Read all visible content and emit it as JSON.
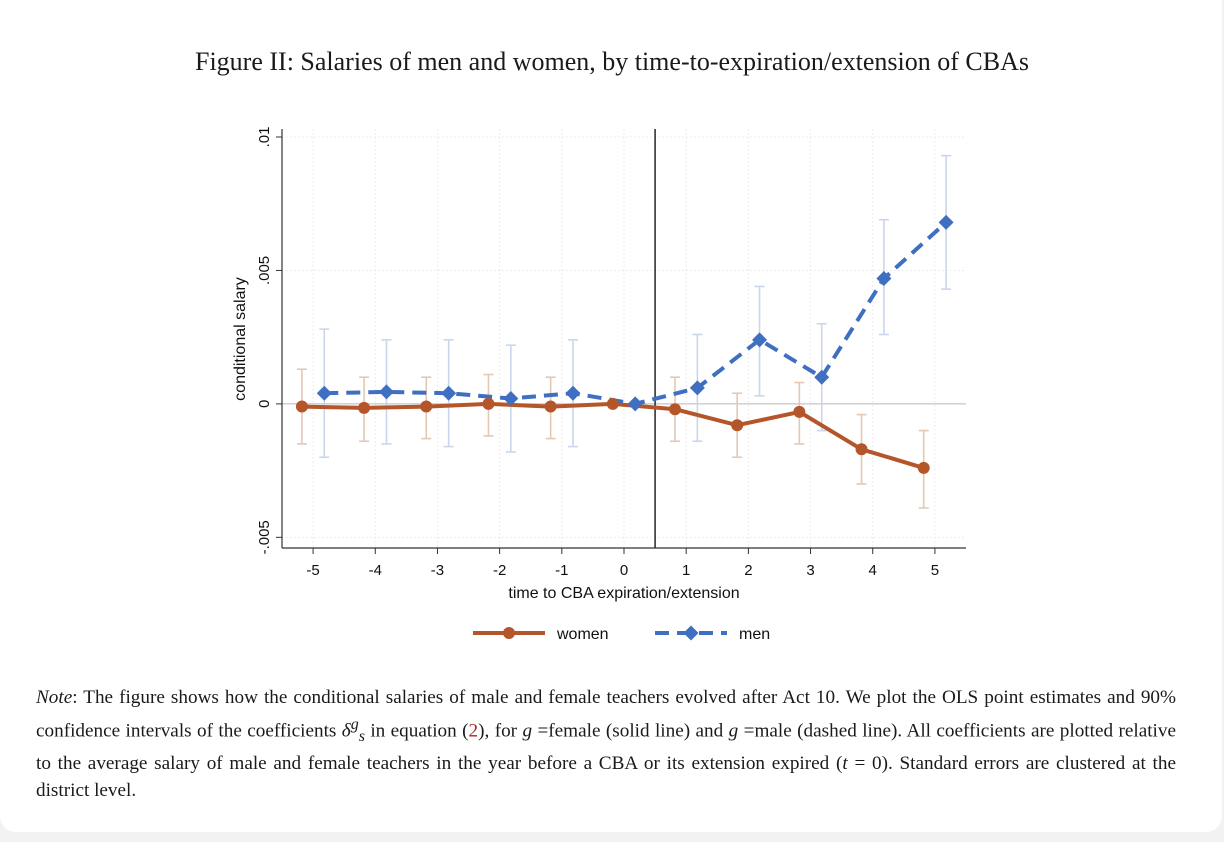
{
  "figure": {
    "title": "Figure II: Salaries of men and women, by time-to-expiration/extension of CBAs"
  },
  "chart_data": {
    "type": "line",
    "xlabel": "time to CBA expiration/extension",
    "ylabel": "conditional salary",
    "x_ticks": [
      "-5",
      "-4",
      "-3",
      "-2",
      "-1",
      "0",
      "1",
      "2",
      "3",
      "4",
      "5"
    ],
    "y_ticks": [
      ".01",
      ".005",
      "0",
      "-.005"
    ],
    "xlim": [
      -5.5,
      5.5
    ],
    "ylim": [
      -0.0054,
      0.0103
    ],
    "vertical_line_x": 0.5,
    "grid": true,
    "series": [
      {
        "name": "women",
        "style": "solid",
        "marker": "circle",
        "color": "#b5562a",
        "ci_color": "#e3c8b4",
        "x": [
          -5,
          -4,
          -3,
          -2,
          -1,
          0,
          1,
          2,
          3,
          4,
          5
        ],
        "values": [
          -0.0001,
          -0.00015,
          -0.0001,
          0.0,
          -0.0001,
          0.0,
          -0.0002,
          -0.0008,
          -0.0003,
          -0.0017,
          -0.0024
        ],
        "ci_low": [
          -0.0015,
          -0.0014,
          -0.0013,
          -0.0012,
          -0.0013,
          0.0,
          -0.0014,
          -0.002,
          -0.0015,
          -0.003,
          -0.0039
        ],
        "ci_high": [
          0.0013,
          0.001,
          0.001,
          0.0011,
          0.001,
          0.0,
          0.001,
          0.0004,
          0.0008,
          -0.0004,
          -0.001
        ]
      },
      {
        "name": "men",
        "style": "dashed",
        "marker": "diamond",
        "color": "#3e6fc0",
        "ci_color": "#c9d6ec",
        "x": [
          -5,
          -4,
          -3,
          -2,
          -1,
          0,
          1,
          2,
          3,
          4,
          5
        ],
        "values": [
          0.0004,
          0.00045,
          0.0004,
          0.0002,
          0.0004,
          0.0,
          0.0006,
          0.0024,
          0.001,
          0.0047,
          0.0068
        ],
        "ci_low": [
          -0.002,
          -0.0015,
          -0.0016,
          -0.0018,
          -0.0016,
          0.0,
          -0.0014,
          0.0003,
          -0.001,
          0.0026,
          0.0043
        ],
        "ci_high": [
          0.0028,
          0.0024,
          0.0024,
          0.0022,
          0.0024,
          0.0,
          0.0026,
          0.0044,
          0.003,
          0.0069,
          0.0093
        ]
      }
    ],
    "legend": [
      "women",
      "men"
    ]
  },
  "note": {
    "label": "Note",
    "p1": ": The figure shows how the conditional salaries of male and female teachers evolved after Act 10. We plot the OLS point estimates and 90% confidence intervals of the coefficients ",
    "coef": "δ",
    "coef_sup": "g",
    "coef_sub": "s",
    "p2": " in equation (",
    "ref": "2",
    "p3": "), for ",
    "g1": "g",
    "p4": " =female (solid line) and ",
    "g2": "g",
    "p5": " =male (dashed line). All coefficients are plotted relative to the average salary of male and female teachers in the year before a CBA or its extension expired (",
    "t": "t",
    "p6": " = 0). Standard errors are clustered at the district level."
  }
}
